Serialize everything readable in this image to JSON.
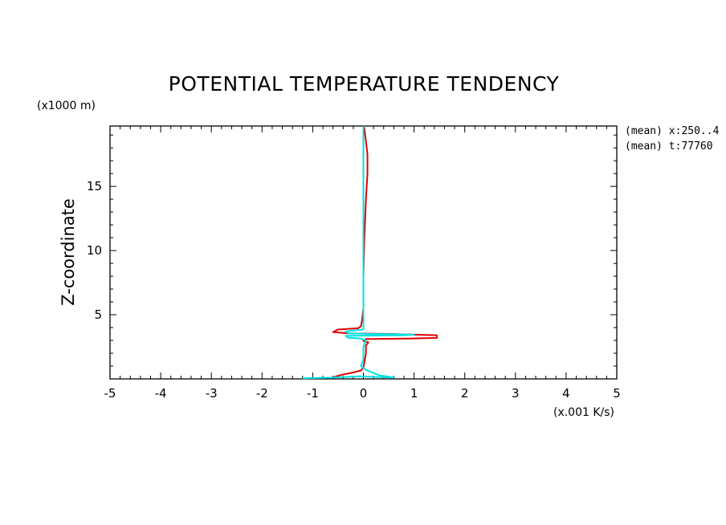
{
  "chart_data": {
    "type": "line",
    "title": "POTENTIAL TEMPERATURE TENDENCY",
    "xlabel": "",
    "x_units": "(x.001 K/s)",
    "ylabel": "Z-coordinate",
    "y_units": "(x1000 m)",
    "xlim": [
      -5,
      5
    ],
    "ylim": [
      0,
      19.7
    ],
    "x_major_ticks": [
      -5,
      -4,
      -3,
      -2,
      -1,
      0,
      1,
      2,
      3,
      4,
      5
    ],
    "x_tick_labels": [
      "-5",
      "-4",
      "-3",
      "-2",
      "-1",
      "0",
      "1",
      "2",
      "3",
      "4",
      "5"
    ],
    "y_major_ticks": [
      5,
      10,
      15
    ],
    "y_tick_labels": [
      "5",
      "10",
      "15"
    ],
    "annotations": [
      "(mean) x:250..4",
      "(mean) t:77760"
    ],
    "series": [
      {
        "color": "#e00000",
        "points": [
          [
            -0.65,
            0.05
          ],
          [
            -0.45,
            0.3
          ],
          [
            -0.2,
            0.5
          ],
          [
            -0.05,
            0.65
          ],
          [
            0.0,
            0.9
          ],
          [
            0.02,
            1.3
          ],
          [
            0.05,
            2.0
          ],
          [
            0.05,
            2.6
          ],
          [
            0.1,
            2.85
          ],
          [
            0.0,
            2.95
          ],
          [
            0.05,
            3.1
          ],
          [
            1.0,
            3.15
          ],
          [
            1.45,
            3.2
          ],
          [
            1.45,
            3.4
          ],
          [
            0.5,
            3.5
          ],
          [
            -0.3,
            3.55
          ],
          [
            -0.6,
            3.65
          ],
          [
            -0.5,
            3.85
          ],
          [
            -0.1,
            3.95
          ],
          [
            -0.05,
            4.1
          ],
          [
            -0.03,
            4.5
          ],
          [
            0.0,
            5.5
          ],
          [
            0.0,
            8.0
          ],
          [
            0.02,
            11.0
          ],
          [
            0.05,
            14.0
          ],
          [
            0.08,
            16.0
          ],
          [
            0.08,
            17.5
          ],
          [
            0.05,
            18.5
          ],
          [
            0.02,
            19.5
          ],
          [
            0.0,
            19.7
          ]
        ]
      },
      {
        "color": "#00e0e0",
        "points": [
          [
            -1.2,
            0.05
          ],
          [
            -0.6,
            0.1
          ],
          [
            -0.1,
            0.2
          ],
          [
            0.6,
            0.1
          ],
          [
            0.3,
            0.3
          ],
          [
            0.05,
            0.7
          ],
          [
            -0.05,
            1.0
          ],
          [
            0.0,
            1.5
          ],
          [
            0.0,
            2.5
          ],
          [
            0.05,
            3.0
          ],
          [
            -0.05,
            3.15
          ],
          [
            -0.3,
            3.2
          ],
          [
            -0.35,
            3.35
          ],
          [
            0.8,
            3.4
          ],
          [
            1.0,
            3.45
          ],
          [
            0.2,
            3.5
          ],
          [
            -0.3,
            3.55
          ],
          [
            -0.35,
            3.7
          ],
          [
            0.0,
            3.85
          ],
          [
            0.0,
            4.5
          ],
          [
            0.0,
            8.0
          ],
          [
            0.0,
            12.0
          ],
          [
            0.0,
            16.0
          ],
          [
            0.0,
            18.5
          ],
          [
            0.0,
            19.7
          ]
        ]
      }
    ]
  }
}
